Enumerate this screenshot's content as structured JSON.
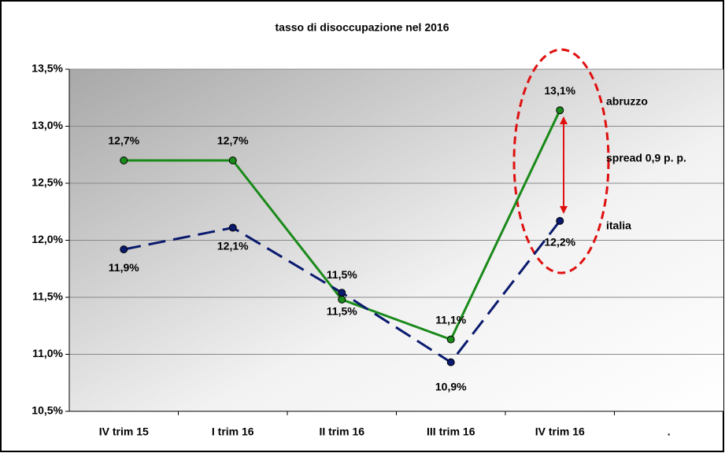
{
  "chart_data": {
    "type": "line",
    "title": "tasso di disoccupazione nel 2016",
    "categories": [
      "IV trim 15",
      "I trim 16",
      "II trim 16",
      "III trim 16",
      "IV trim 16",
      "."
    ],
    "series": [
      {
        "name": "abruzzo",
        "color": "#1a8a1a",
        "values": [
          12.7,
          12.7,
          11.48,
          11.13,
          13.14,
          null
        ],
        "value_labels": [
          "12,7%",
          "12,7%",
          "11,5%",
          "11,1%",
          "13,1%",
          null
        ]
      },
      {
        "name": "italia",
        "color": "#0a1a6e",
        "values": [
          11.92,
          12.11,
          11.54,
          10.93,
          12.17,
          null
        ],
        "value_labels": [
          "11,9%",
          "12,1%",
          "11,5%",
          "10,9%",
          "12,2%",
          null
        ]
      }
    ],
    "annotations": [
      "spread 0,9 p. p."
    ],
    "ylim": [
      10.5,
      13.5
    ],
    "yticks": [
      {
        "value": 10.5,
        "label": "10,5%"
      },
      {
        "value": 11.0,
        "label": "11,0%"
      },
      {
        "value": 11.5,
        "label": "11,5%"
      },
      {
        "value": 12.0,
        "label": "12,0%"
      },
      {
        "value": 12.5,
        "label": "12,5%"
      },
      {
        "value": 13.0,
        "label": "13,0%"
      },
      {
        "value": 13.5,
        "label": "13,5%"
      }
    ],
    "grid": true
  }
}
